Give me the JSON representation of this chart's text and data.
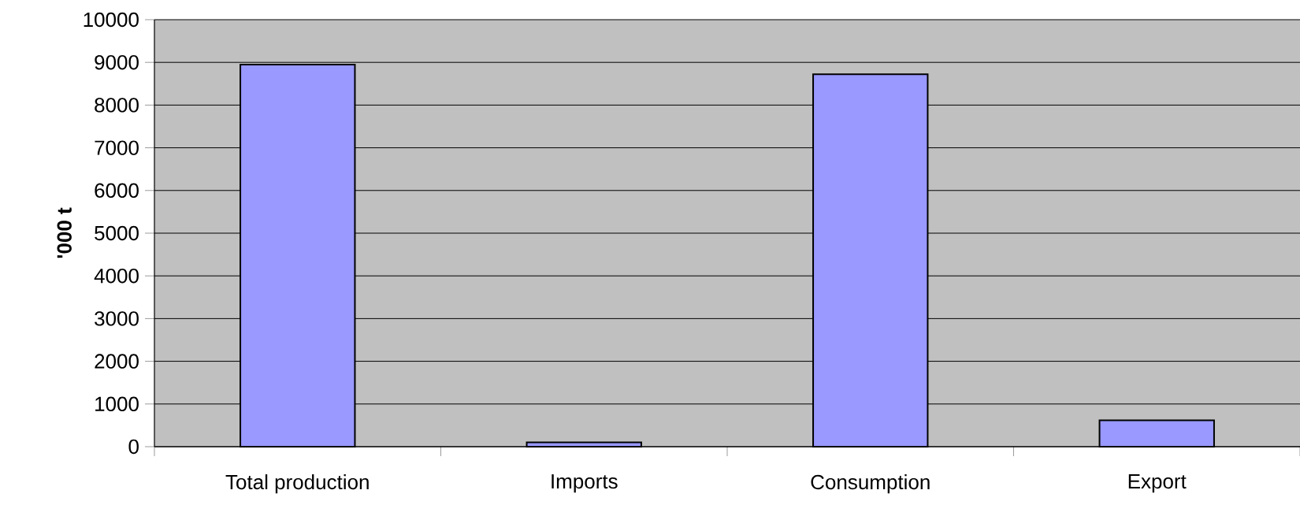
{
  "chart_data": {
    "type": "bar",
    "ylabel": "'000 t",
    "categories": [
      "Total production",
      "Imports",
      "Consumption",
      "Export"
    ],
    "values": [
      8950,
      100,
      8720,
      620
    ],
    "color": "#9999ff",
    "ylim": [
      0,
      10000
    ],
    "yticks": [
      0,
      1000,
      2000,
      3000,
      4000,
      5000,
      6000,
      7000,
      8000,
      9000,
      10000
    ],
    "grid": "y"
  }
}
